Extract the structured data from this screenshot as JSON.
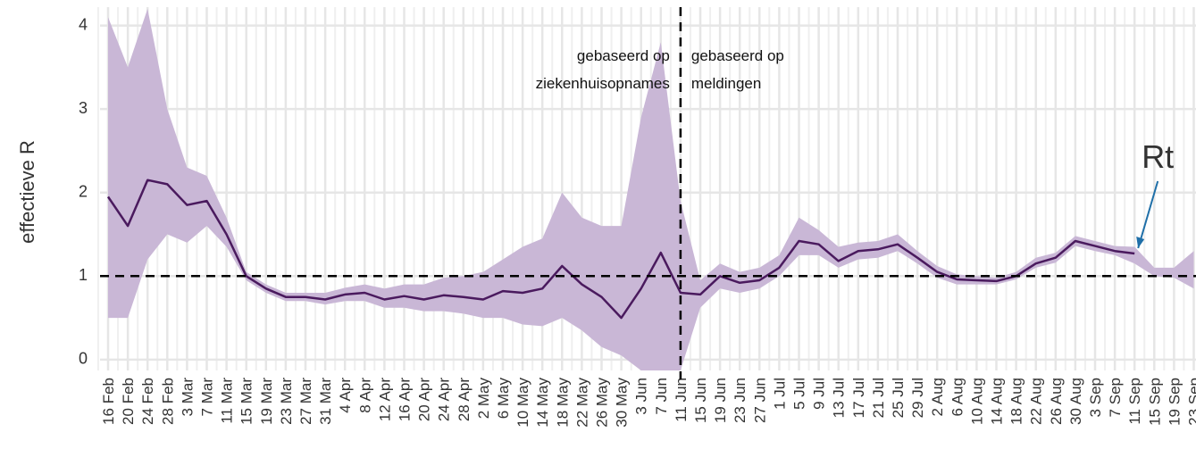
{
  "chart_data": {
    "type": "line",
    "ylabel": "effectieve R",
    "categories": [
      "16 Feb",
      "20 Feb",
      "24 Feb",
      "28 Feb",
      "3 Mar",
      "7 Mar",
      "11 Mar",
      "15 Mar",
      "19 Mar",
      "23 Mar",
      "27 Mar",
      "31 Mar",
      "4 Apr",
      "8 Apr",
      "12 Apr",
      "16 Apr",
      "20 Apr",
      "24 Apr",
      "28 Apr",
      "2 May",
      "6 May",
      "10 May",
      "14 May",
      "18 May",
      "22 May",
      "26 May",
      "30 May",
      "3 Jun",
      "7 Jun",
      "11 Jun",
      "15 Jun",
      "19 Jun",
      "23 Jun",
      "27 Jun",
      "1 Jul",
      "5 Jul",
      "9 Jul",
      "13 Jul",
      "17 Jul",
      "21 Jul",
      "25 Jul",
      "29 Jul",
      "2 Aug",
      "6 Aug",
      "10 Aug",
      "14 Aug",
      "18 Aug",
      "22 Aug",
      "26 Aug",
      "30 Aug",
      "3 Sep",
      "7 Sep",
      "11 Sep",
      "15 Sep",
      "19 Sep",
      "23 Sep"
    ],
    "series": [
      {
        "name": "Rt",
        "color": "#4a1a5e",
        "band_color": "#c9b7d6",
        "values": [
          1.95,
          1.6,
          2.15,
          2.1,
          1.85,
          1.9,
          1.5,
          1.0,
          0.85,
          0.75,
          0.75,
          0.72,
          0.78,
          0.8,
          0.72,
          0.76,
          0.72,
          0.77,
          0.75,
          0.72,
          0.82,
          0.8,
          0.85,
          1.12,
          0.9,
          0.75,
          0.5,
          0.85,
          1.28,
          0.8,
          0.78,
          1.0,
          0.92,
          0.95,
          1.1,
          1.42,
          1.38,
          1.18,
          1.3,
          1.32,
          1.38,
          1.22,
          1.05,
          0.96,
          0.95,
          0.94,
          1.0,
          1.15,
          1.22,
          1.42,
          1.36,
          1.3,
          1.27,
          null,
          null,
          null
        ],
        "lower": [
          0.5,
          0.5,
          1.2,
          1.5,
          1.4,
          1.6,
          1.35,
          0.95,
          0.8,
          0.7,
          0.7,
          0.66,
          0.7,
          0.7,
          0.62,
          0.62,
          0.58,
          0.58,
          0.55,
          0.5,
          0.5,
          0.42,
          0.4,
          0.5,
          0.35,
          0.15,
          0.05,
          -0.13,
          -0.13,
          -0.13,
          0.62,
          0.85,
          0.8,
          0.85,
          1.0,
          1.25,
          1.25,
          1.1,
          1.2,
          1.22,
          1.3,
          1.15,
          0.98,
          0.9,
          0.9,
          0.9,
          0.96,
          1.1,
          1.16,
          1.36,
          1.3,
          1.25,
          1.15,
          1.0,
          0.98,
          0.85
        ],
        "upper": [
          4.1,
          3.5,
          4.2,
          3.0,
          2.3,
          2.2,
          1.7,
          1.05,
          0.9,
          0.8,
          0.8,
          0.8,
          0.86,
          0.9,
          0.85,
          0.9,
          0.9,
          0.98,
          1.0,
          1.05,
          1.2,
          1.35,
          1.45,
          2.0,
          1.7,
          1.6,
          1.6,
          2.9,
          3.8,
          1.9,
          0.95,
          1.15,
          1.05,
          1.1,
          1.25,
          1.7,
          1.55,
          1.35,
          1.4,
          1.42,
          1.5,
          1.3,
          1.12,
          1.02,
          1.0,
          0.98,
          1.05,
          1.22,
          1.28,
          1.48,
          1.42,
          1.36,
          1.35,
          1.1,
          1.1,
          1.3
        ]
      }
    ],
    "ylim": [
      -0.13,
      4.22
    ],
    "yticks": [
      0,
      1,
      2,
      3,
      4
    ],
    "grid": true,
    "hline": 1,
    "vline": "11 Jun",
    "annotations": [
      {
        "lines": [
          "gebaseerd op",
          "ziekenhuisopnames"
        ],
        "side": "left"
      },
      {
        "lines": [
          "gebaseerd op",
          "meldingen"
        ],
        "side": "right"
      }
    ]
  }
}
